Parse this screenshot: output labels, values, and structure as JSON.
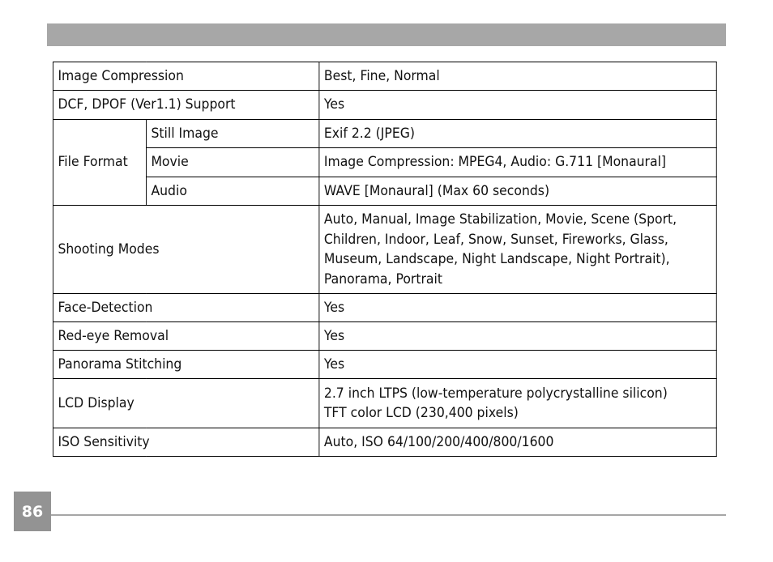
{
  "page_number": "86",
  "spec_table": {
    "rows": [
      {
        "label": "Image Compression",
        "value": "Best, Fine, Normal"
      },
      {
        "label": "DCF, DPOF (Ver1.1) Support",
        "value": "Yes"
      },
      {
        "label": "File Format",
        "sub": [
          {
            "label": "Still Image",
            "value": "Exif 2.2 (JPEG)"
          },
          {
            "label": "Movie",
            "value": "Image Compression: MPEG4, Audio: G.711 [Monaural]"
          },
          {
            "label": "Audio",
            "value": "WAVE [Monaural] (Max 60 seconds)"
          }
        ]
      },
      {
        "label": "Shooting Modes",
        "value_lines": [
          "Auto, Manual, Image Stabilization, Movie, Scene (Sport,",
          "Children, Indoor, Leaf, Snow, Sunset, Fireworks, Glass,",
          "Museum, Landscape, Night Landscape, Night Portrait),",
          "Panorama, Portrait"
        ]
      },
      {
        "label": "Face-Detection",
        "value": "Yes"
      },
      {
        "label": "Red-eye Removal",
        "value": "Yes"
      },
      {
        "label": "Panorama Stitching",
        "value": "Yes"
      },
      {
        "label": "LCD Display",
        "value_lines": [
          "2.7 inch LTPS (low-temperature polycrystalline silicon)",
          "TFT color LCD (230,400 pixels)"
        ]
      },
      {
        "label": "ISO Sensitivity",
        "value": "Auto, ISO 64/100/200/400/800/1600"
      }
    ]
  }
}
